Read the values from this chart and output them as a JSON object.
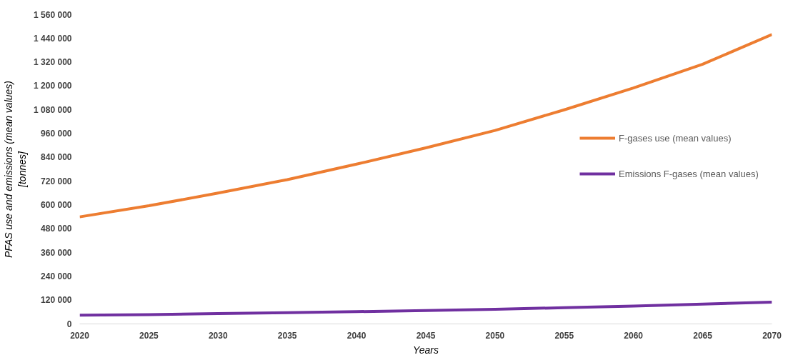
{
  "chart_data": {
    "type": "line",
    "xlabel": "Years",
    "ylabel": "PFAS use and emissions (mean values)\n[tonnes]",
    "x": [
      2020,
      2025,
      2030,
      2035,
      2040,
      2045,
      2050,
      2055,
      2060,
      2065,
      2070
    ],
    "series": [
      {
        "name": "F-gases use (mean values)",
        "color": "#ed7d31",
        "values": [
          540000,
          596000,
          660000,
          728000,
          806000,
          888000,
          976000,
          1080000,
          1190000,
          1310000,
          1460000
        ]
      },
      {
        "name": "Emissions F-gases (mean values)",
        "color": "#7030a0",
        "values": [
          44000,
          47000,
          52000,
          57000,
          62000,
          68000,
          74000,
          82000,
          90000,
          100000,
          110000
        ]
      }
    ],
    "xlim": [
      2020,
      2070
    ],
    "xticks": [
      2020,
      2025,
      2030,
      2035,
      2040,
      2045,
      2050,
      2055,
      2060,
      2065,
      2070
    ],
    "ylim": [
      0,
      1560000
    ],
    "yticks": [
      {
        "value": 0,
        "label": "0"
      },
      {
        "value": 120000,
        "label": "120 000"
      },
      {
        "value": 240000,
        "label": "240 000"
      },
      {
        "value": 360000,
        "label": "360 000"
      },
      {
        "value": 480000,
        "label": "480 000"
      },
      {
        "value": 600000,
        "label": "600 000"
      },
      {
        "value": 720000,
        "label": "720 000"
      },
      {
        "value": 840000,
        "label": "840 000"
      },
      {
        "value": 960000,
        "label": "960 000"
      },
      {
        "value": 1080000,
        "label": "1 080 000"
      },
      {
        "value": 1200000,
        "label": "1 200 000"
      },
      {
        "value": 1320000,
        "label": "1 320 000"
      },
      {
        "value": 1440000,
        "label": "1 440 000"
      },
      {
        "value": 1560000,
        "label": "1 560 000"
      }
    ],
    "grid": false,
    "legend": "right",
    "marker": "none",
    "line_style": "solid"
  }
}
